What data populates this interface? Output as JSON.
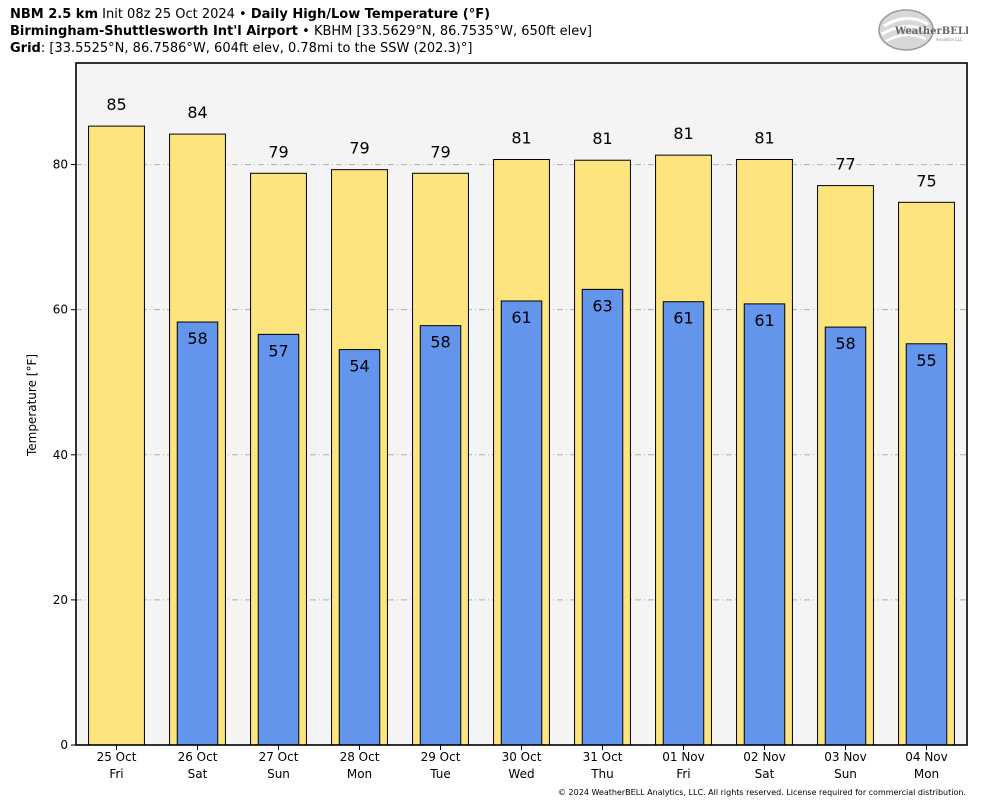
{
  "header": {
    "line1": {
      "model": "NBM 2.5 km",
      "init": " Init 08z 25 Oct 2024 • ",
      "product": "Daily High/Low Temperature (°F)"
    },
    "line2": {
      "station": "Birmingham-Shuttlesworth Int'l Airport",
      "details": " • KBHM [33.5629°N, 86.7535°W, 650ft elev]"
    },
    "line3": {
      "label": "Grid",
      "details": ": [33.5525°N, 86.7586°W, 604ft elev, 0.78mi to the SSW (202.3)°]"
    }
  },
  "logo": {
    "text": "WeatherBELL",
    "subtext": "Analytics LLC"
  },
  "copyright": "© 2024 WeatherBELL Analytics, LLC. All rights reserved. License required for commercial distribution.",
  "colors": {
    "high": "#fde47f",
    "low": "#6495ed",
    "plot_bg": "#f4f4f4",
    "grid": "#b0b0b0"
  },
  "chart_data": {
    "type": "bar",
    "title": "Daily High/Low Temperature (°F)",
    "ylabel": "Temperature [°F]",
    "ylim": [
      0,
      94
    ],
    "yticks": [
      0,
      20,
      40,
      60,
      80
    ],
    "grid": true,
    "categories": [
      {
        "date": "25 Oct",
        "day": "Fri"
      },
      {
        "date": "26 Oct",
        "day": "Sat"
      },
      {
        "date": "27 Oct",
        "day": "Sun"
      },
      {
        "date": "28 Oct",
        "day": "Mon"
      },
      {
        "date": "29 Oct",
        "day": "Tue"
      },
      {
        "date": "30 Oct",
        "day": "Wed"
      },
      {
        "date": "31 Oct",
        "day": "Thu"
      },
      {
        "date": "01 Nov",
        "day": "Fri"
      },
      {
        "date": "02 Nov",
        "day": "Sat"
      },
      {
        "date": "03 Nov",
        "day": "Sun"
      },
      {
        "date": "04 Nov",
        "day": "Mon"
      }
    ],
    "series": [
      {
        "key": "high",
        "values": [
          85.3,
          84.2,
          78.8,
          79.3,
          78.8,
          80.7,
          80.6,
          81.3,
          80.7,
          77.1,
          74.8
        ],
        "labels": [
          "85",
          "84",
          "79",
          "79",
          "79",
          "81",
          "81",
          "81",
          "81",
          "77",
          "75"
        ]
      },
      {
        "key": "low",
        "values": [
          null,
          58.3,
          56.6,
          54.5,
          57.8,
          61.2,
          62.8,
          61.1,
          60.8,
          57.6,
          55.3
        ],
        "labels": [
          null,
          "58",
          "57",
          "54",
          "58",
          "61",
          "63",
          "61",
          "61",
          "58",
          "55"
        ]
      }
    ]
  }
}
